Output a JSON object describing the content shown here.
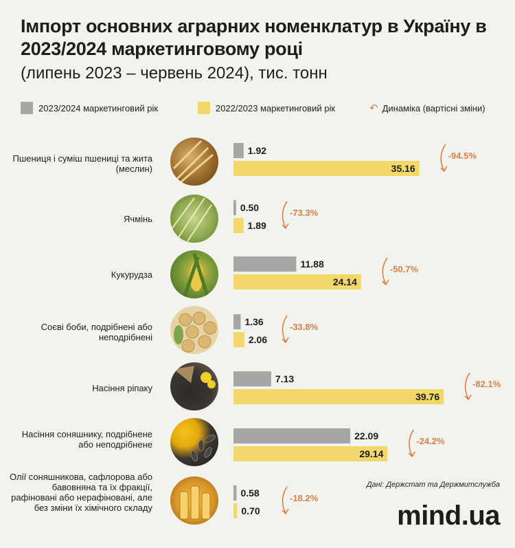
{
  "title": "Імпорт основних аграрних номенклатур в Україну в 2023/2024 маркетинговому році",
  "subtitle": "(липень 2023 – червень 2024), тис. тонн",
  "legend": {
    "series_2023": "2023/2024 маркетинговий рік",
    "series_2022": "2022/2023 маркетинговий рік",
    "dynamics": "Динаміка (вартісні зміни)"
  },
  "colors": {
    "gray": "#a6a6a6",
    "yellow": "#f2d76b",
    "accent": "#d9804a"
  },
  "source": "Дані: Держстат та Держмитслужба",
  "brand": "mind.ua",
  "chart_data": {
    "type": "bar",
    "categories": [
      "Пшениця і суміш пшениці та жита (меслин)",
      "Ячмінь",
      "Кукурудза",
      "Соєві боби, подрібнені або неподрібнені",
      "Насіння ріпаку",
      "Насіння соняшнику, подрібнене або неподрібнене",
      "Олії соняшникова, сафлорова або бавовняна та їх фракції, рафіновані або нерафіновані, але без зміни їх хімічного складу"
    ],
    "series": [
      {
        "name": "2023/2024 маркетинговий рік",
        "values": [
          1.92,
          0.5,
          11.88,
          1.36,
          7.13,
          22.09,
          0.58
        ]
      },
      {
        "name": "2022/2023 маркетинговий рік",
        "values": [
          35.16,
          1.89,
          24.14,
          2.06,
          39.76,
          29.14,
          0.7
        ]
      }
    ],
    "value_labels": [
      [
        "1.92",
        "0.50",
        "11.88",
        "1.36",
        "7.13",
        "22.09",
        "0.58"
      ],
      [
        "35.16",
        "1.89",
        "24.14",
        "2.06",
        "39.76",
        "29.14",
        "0.70"
      ]
    ],
    "dynamics": [
      "-94.5%",
      "-73.3%",
      "-50.7%",
      "-33.8%",
      "-82.1%",
      "-24.2%",
      "-18.2%"
    ],
    "orientation": "horizontal",
    "xlim": [
      0,
      40
    ]
  }
}
